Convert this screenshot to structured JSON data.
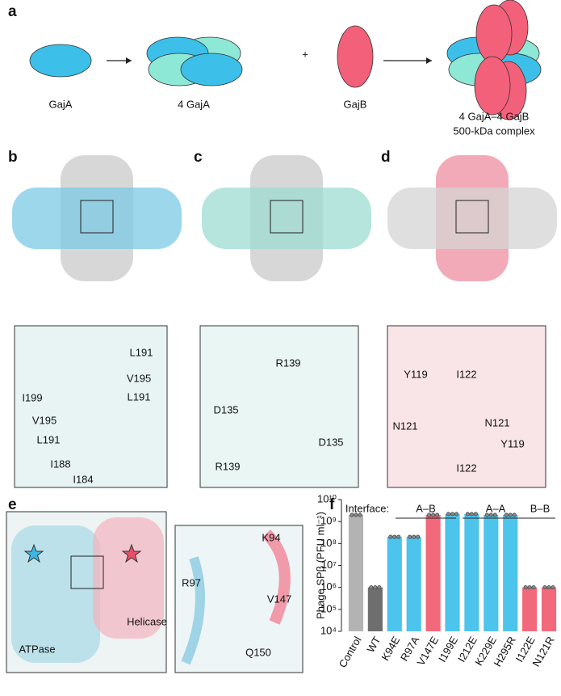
{
  "panel_labels": [
    "a",
    "b",
    "c",
    "d",
    "e",
    "f"
  ],
  "panel_a": {
    "labels": [
      "GajA",
      "4 GajA",
      "+",
      "GajB",
      "4 GajA–4 GajB",
      "500-kDa complex"
    ]
  },
  "panel_b": {
    "residues": [
      "L191",
      "V195",
      "I199",
      "L191",
      "V195",
      "L191",
      "I188",
      "I184"
    ]
  },
  "panel_c": {
    "residues": [
      "D135",
      "R139",
      "D135",
      "R139"
    ]
  },
  "panel_d": {
    "residues": [
      "Y119",
      "I122",
      "N121",
      "N121",
      "Y119",
      "I122"
    ]
  },
  "panel_e": {
    "labels": [
      "ATPase",
      "Helicase"
    ],
    "residues": [
      "K94",
      "R97",
      "V147",
      "Q150"
    ]
  },
  "chart_data": {
    "type": "bar",
    "y_label": "Phage SPβ (PFU ml⁻¹)",
    "interface_label": "Interface:",
    "group_labels": [
      "A–B",
      "A–A",
      "B–B"
    ],
    "categories": [
      "Control",
      "WT",
      "K94E",
      "R97A",
      "V147E",
      "I199E",
      "I212E",
      "K229E",
      "H295R",
      "I122E",
      "N121R"
    ],
    "values": [
      2000000000,
      1000000,
      200000000,
      200000000,
      2000000000,
      2200000000,
      2200000000,
      2000000000,
      2000000000,
      1000000,
      1000000
    ],
    "colors": [
      "#b3b3b3",
      "#6e6e6e",
      "#4cc4ec",
      "#4cc4ec",
      "#f2697c",
      "#4cc4ec",
      "#4cc4ec",
      "#4cc4ec",
      "#4cc4ec",
      "#f2697c",
      "#f2697c"
    ],
    "log_scale": true,
    "ylim": [
      10000,
      10000000000
    ],
    "yticks": [
      {
        "value": 10000,
        "label": "10⁴"
      },
      {
        "value": 100000,
        "label": "10⁵"
      },
      {
        "value": 1000000,
        "label": "10⁶"
      },
      {
        "value": 10000000,
        "label": "10⁷"
      },
      {
        "value": 100000000,
        "label": "10⁸"
      },
      {
        "value": 1000000000,
        "label": "10⁹"
      },
      {
        "value": 10000000000,
        "label": "10¹⁰"
      }
    ]
  }
}
